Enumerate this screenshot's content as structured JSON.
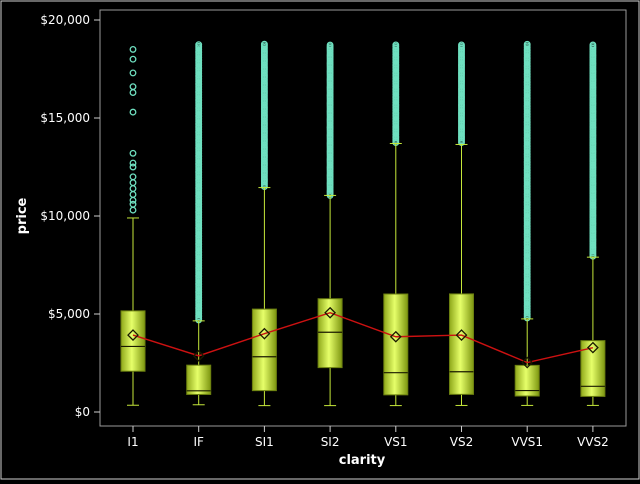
{
  "chart_data": {
    "type": "boxplot",
    "xlabel": "clarity",
    "ylabel": "price",
    "ylim": [
      0,
      20000
    ],
    "yticks": [
      0,
      5000,
      10000,
      15000,
      20000
    ],
    "ytick_labels": [
      "$0",
      "$5,000",
      "$10,000",
      "$15,000",
      "$20,000"
    ],
    "categories": [
      "I1",
      "IF",
      "SI1",
      "SI2",
      "VS1",
      "VS2",
      "VVS1",
      "VVS2"
    ],
    "boxes": [
      {
        "category": "I1",
        "min": 345,
        "q1": 2080,
        "median": 3345,
        "q3": 5160,
        "whisker_max": 9900,
        "mean": 3924,
        "outliers": [
          18500,
          18000,
          17300,
          16600,
          16300,
          15300,
          13200,
          12700,
          12500,
          12000,
          11700,
          11400,
          11100,
          10800,
          10600,
          10300
        ]
      },
      {
        "category": "IF",
        "min": 369,
        "q1": 895,
        "median": 1080,
        "q3": 2390,
        "whisker_max": 4650,
        "mean": 2865,
        "outlier_range": [
          4700,
          18800
        ]
      },
      {
        "category": "SI1",
        "min": 326,
        "q1": 1090,
        "median": 2820,
        "q3": 5250,
        "whisker_max": 11450,
        "mean": 3996,
        "outlier_range": [
          11500,
          18800
        ]
      },
      {
        "category": "SI2",
        "min": 326,
        "q1": 2265,
        "median": 4070,
        "q3": 5780,
        "whisker_max": 11050,
        "mean": 5063,
        "outlier_range": [
          11050,
          18800
        ]
      },
      {
        "category": "VS1",
        "min": 327,
        "q1": 875,
        "median": 2005,
        "q3": 6020,
        "whisker_max": 13700,
        "mean": 3840,
        "outlier_range": [
          13750,
          18800
        ]
      },
      {
        "category": "VS2",
        "min": 334,
        "q1": 900,
        "median": 2055,
        "q3": 6025,
        "whisker_max": 13650,
        "mean": 3925,
        "outlier_range": [
          13750,
          18800
        ]
      },
      {
        "category": "VVS1",
        "min": 336,
        "q1": 815,
        "median": 1095,
        "q3": 2380,
        "whisker_max": 4750,
        "mean": 2523,
        "outlier_range": [
          4800,
          18800
        ]
      },
      {
        "category": "VVS2",
        "min": 336,
        "q1": 795,
        "median": 1310,
        "q3": 3640,
        "whisker_max": 7900,
        "mean": 3284,
        "outlier_range": [
          7950,
          18800
        ]
      }
    ],
    "mean_line_color": "#cc1111",
    "box_color": "#c6e83a",
    "outlier_color": "#6fe0c0",
    "background": "#000000",
    "grid": false,
    "legend": "none"
  }
}
